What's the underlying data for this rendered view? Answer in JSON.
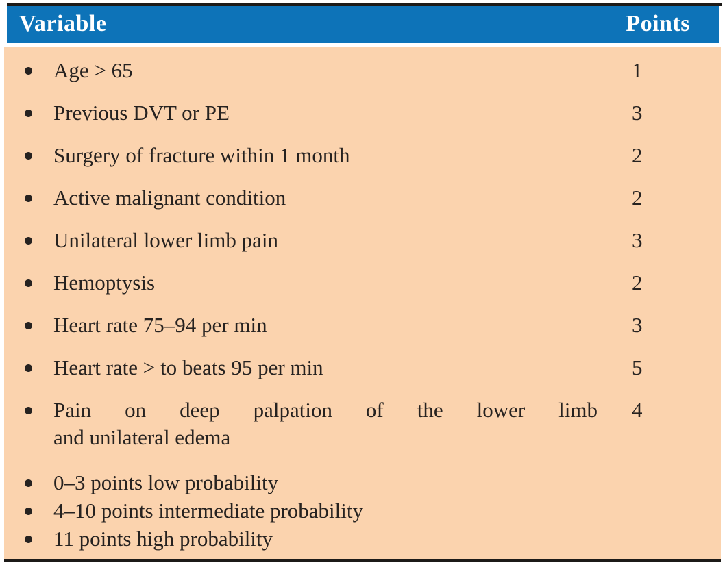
{
  "table": {
    "header": {
      "variable_label": "Variable",
      "points_label": "Points"
    },
    "rows": [
      {
        "lines": [
          "Age > 65"
        ],
        "points": "1"
      },
      {
        "lines": [
          "Previous DVT or PE"
        ],
        "points": "3"
      },
      {
        "lines": [
          "Surgery of fracture within 1 month"
        ],
        "points": "2"
      },
      {
        "lines": [
          "Active malignant condition"
        ],
        "points": "2"
      },
      {
        "lines": [
          "Unilateral lower limb pain"
        ],
        "points": "3"
      },
      {
        "lines": [
          "Hemoptysis"
        ],
        "points": "2"
      },
      {
        "lines": [
          "Heart rate 75–94 per min"
        ],
        "points": "3"
      },
      {
        "lines": [
          "Heart rate > to beats 95 per min"
        ],
        "points": "5"
      },
      {
        "lines": [
          "Pain on deep palpation of the lower limb",
          "and unilateral edema"
        ],
        "points": "4",
        "justify": true
      }
    ],
    "interpretation": [
      {
        "lines": [
          "0–3 points low probability"
        ]
      },
      {
        "lines": [
          "4–10 points intermediate probability"
        ]
      },
      {
        "lines": [
          "11 points high probability"
        ]
      }
    ],
    "colors": {
      "header_bg": "#0d73b8",
      "body_bg": "#fbd3ae",
      "text": "#262220",
      "rule": "#1c1a18",
      "header_text": "#ffffff"
    }
  }
}
